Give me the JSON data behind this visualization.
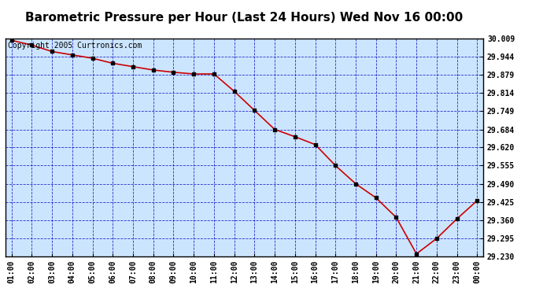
{
  "title": "Barometric Pressure per Hour (Last 24 Hours) Wed Nov 16 00:00",
  "copyright_text": "Copyright 2005 Curtronics.com",
  "x_labels": [
    "01:00",
    "02:00",
    "03:00",
    "04:00",
    "05:00",
    "06:00",
    "07:00",
    "08:00",
    "09:00",
    "10:00",
    "11:00",
    "12:00",
    "13:00",
    "14:00",
    "15:00",
    "16:00",
    "17:00",
    "18:00",
    "19:00",
    "20:00",
    "21:00",
    "22:00",
    "23:00",
    "00:00"
  ],
  "y_values": [
    30.002,
    29.985,
    29.962,
    29.95,
    29.938,
    29.92,
    29.908,
    29.896,
    29.888,
    29.882,
    29.882,
    29.82,
    29.752,
    29.684,
    29.658,
    29.63,
    29.555,
    29.49,
    29.44,
    29.37,
    29.24,
    29.295,
    29.365,
    29.43
  ],
  "ylim_min": 29.23,
  "ylim_max": 30.009,
  "yticks": [
    29.23,
    29.295,
    29.36,
    29.425,
    29.49,
    29.555,
    29.62,
    29.684,
    29.749,
    29.814,
    29.879,
    29.944,
    30.009
  ],
  "line_color": "#cc0000",
  "marker_color": "#000000",
  "bg_color": "#cce5ff",
  "grid_color": "#0000bb",
  "title_color": "#000000",
  "title_fontsize": 11,
  "tick_fontsize": 7,
  "copyright_fontsize": 7,
  "fig_width": 6.9,
  "fig_height": 3.75,
  "dpi": 100
}
